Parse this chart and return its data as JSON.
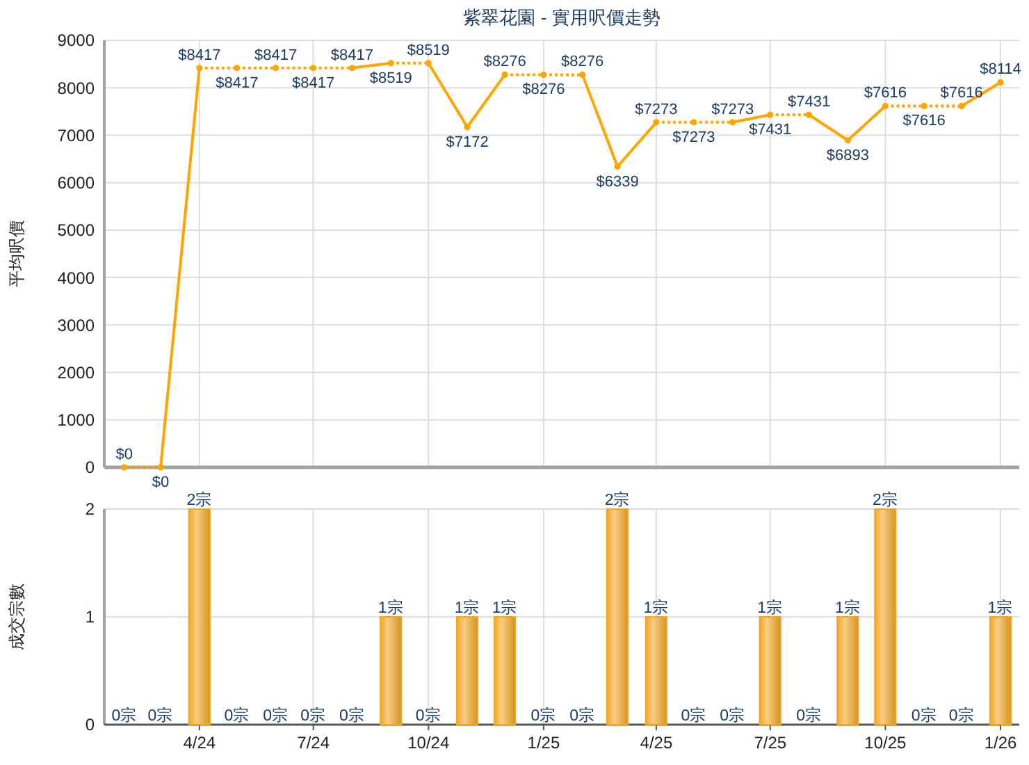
{
  "chart_data": [
    {
      "type": "line",
      "title": "紫翠花園 - 實用呎價走勢",
      "ylabel": "平均呎價",
      "x": [
        "2024-02",
        "2024-03",
        "2024-04",
        "2024-05",
        "2024-06",
        "2024-07",
        "2024-08",
        "2024-09",
        "2024-10",
        "2024-11",
        "2024-12",
        "2025-01",
        "2025-02",
        "2025-03",
        "2025-04",
        "2025-05",
        "2025-06",
        "2025-07",
        "2025-08",
        "2025-09",
        "2025-10",
        "2025-11",
        "2025-12",
        "2026-01"
      ],
      "xlim": [
        "2024-01-16",
        "2026-01-16"
      ],
      "xticks": [
        {
          "value": "2024-04",
          "label": null
        },
        {
          "value": "2024-07",
          "label": null
        },
        {
          "value": "2024-10",
          "label": null
        },
        {
          "value": "2025-01",
          "label": null
        },
        {
          "value": "2025-04",
          "label": null
        },
        {
          "value": "2025-07",
          "label": null
        },
        {
          "value": "2025-10",
          "label": null
        },
        {
          "value": "2026-01",
          "label": null
        }
      ],
      "series": [
        {
          "color": "#ffa500",
          "line_style": "dotted",
          "values": [
            0,
            0,
            8417,
            8417,
            8417,
            8417,
            8417,
            8519,
            8519,
            7172,
            8276,
            8276,
            8276,
            6339,
            7273,
            7273,
            7273,
            7431,
            7431,
            6893,
            7616,
            7616,
            7616,
            8114
          ],
          "value_labels": [
            "$0",
            "$0",
            "$8417",
            "$8417",
            "$8417",
            "$8417",
            "$8417",
            "$8519",
            "$8519",
            "$7172",
            "$8276",
            "$8276",
            "$8276",
            "$6339",
            "$7273",
            "$7273",
            "$7273",
            "$7431",
            "$7431",
            "$6893",
            "$7616",
            "$7616",
            "$7616",
            "$8114"
          ]
        }
      ],
      "ylim": [
        0,
        9000
      ],
      "yticks": [
        0,
        1000,
        2000,
        3000,
        4000,
        5000,
        6000,
        7000,
        8000,
        9000
      ],
      "grid": true,
      "marker": "circle",
      "tick_labels": "y"
    },
    {
      "type": "bar",
      "ylabel": "成交宗數",
      "x": [
        "2024-02",
        "2024-03",
        "2024-04",
        "2024-05",
        "2024-06",
        "2024-07",
        "2024-08",
        "2024-09",
        "2024-10",
        "2024-11",
        "2024-12",
        "2025-01",
        "2025-02",
        "2025-03",
        "2025-04",
        "2025-05",
        "2025-06",
        "2025-07",
        "2025-08",
        "2025-09",
        "2025-10",
        "2025-11",
        "2025-12",
        "2026-01"
      ],
      "xlim": [
        "2024-01-16",
        "2026-01-16"
      ],
      "xticks": [
        {
          "value": "2024-04",
          "label": "4/24"
        },
        {
          "value": "2024-07",
          "label": "7/24"
        },
        {
          "value": "2024-10",
          "label": "10/24"
        },
        {
          "value": "2025-01",
          "label": "1/25"
        },
        {
          "value": "2025-04",
          "label": "4/25"
        },
        {
          "value": "2025-07",
          "label": "7/25"
        },
        {
          "value": "2025-10",
          "label": "10/25"
        },
        {
          "value": "2026-01",
          "label": "1/26"
        }
      ],
      "values": [
        0,
        0,
        2,
        0,
        0,
        0,
        0,
        1,
        0,
        1,
        1,
        0,
        0,
        2,
        1,
        0,
        0,
        1,
        0,
        1,
        2,
        0,
        0,
        1
      ],
      "value_labels": [
        "0宗",
        "0宗",
        "2宗",
        "0宗",
        "0宗",
        "0宗",
        "0宗",
        "1宗",
        "0宗",
        "1宗",
        "1宗",
        "0宗",
        "0宗",
        "2宗",
        "1宗",
        "0宗",
        "0宗",
        "1宗",
        "0宗",
        "1宗",
        "2宗",
        "0宗",
        "0宗",
        "1宗"
      ],
      "color": "#f2a623",
      "ylim": [
        0,
        2
      ],
      "yticks": [
        0,
        1,
        2
      ],
      "grid": true
    }
  ]
}
